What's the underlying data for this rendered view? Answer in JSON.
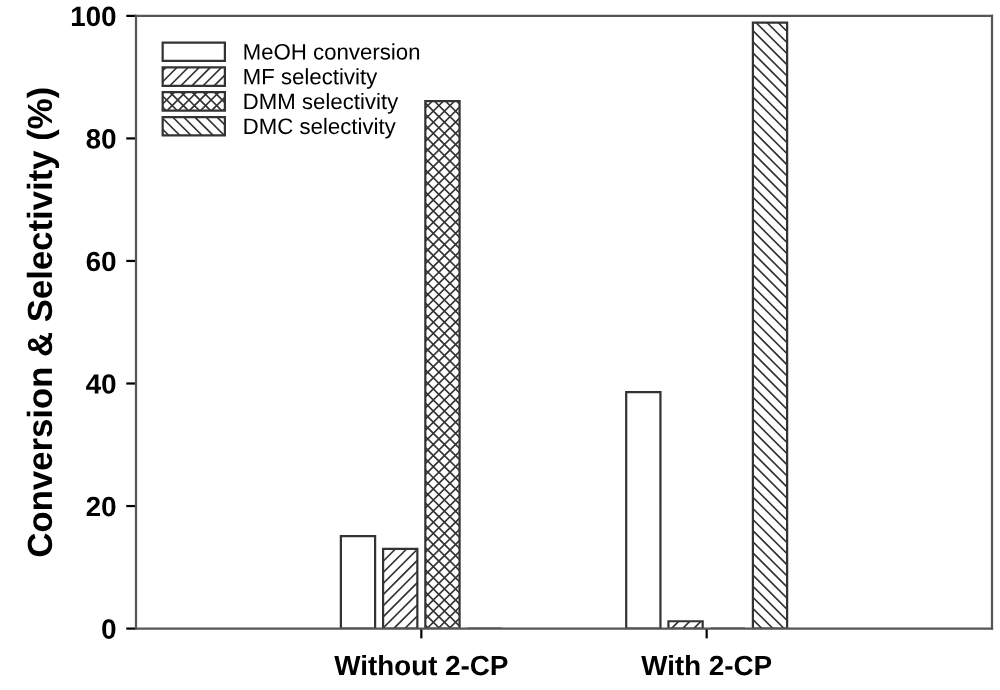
{
  "chart_data": {
    "type": "bar",
    "ylabel": "Conversion & Selectivity (%)",
    "categories": [
      "Without 2-CP",
      "With 2-CP"
    ],
    "series": [
      {
        "name": "MeOH conversion",
        "color": "#ffffff",
        "values": [
          15.1,
          38.6
        ]
      },
      {
        "name": "MF selectivity",
        "color": "#333333",
        "values": [
          13.0,
          1.2
        ]
      },
      {
        "name": "DMM selectivity",
        "color": "#333333",
        "values": [
          86.1,
          0
        ]
      },
      {
        "name": "DMC selectivity",
        "color": "#333333",
        "values": [
          0,
          98.9
        ]
      }
    ],
    "ylim": [
      0,
      100
    ],
    "yticks": [
      0,
      20,
      40,
      60,
      80,
      100
    ],
    "grid": false,
    "legend": "top left"
  }
}
